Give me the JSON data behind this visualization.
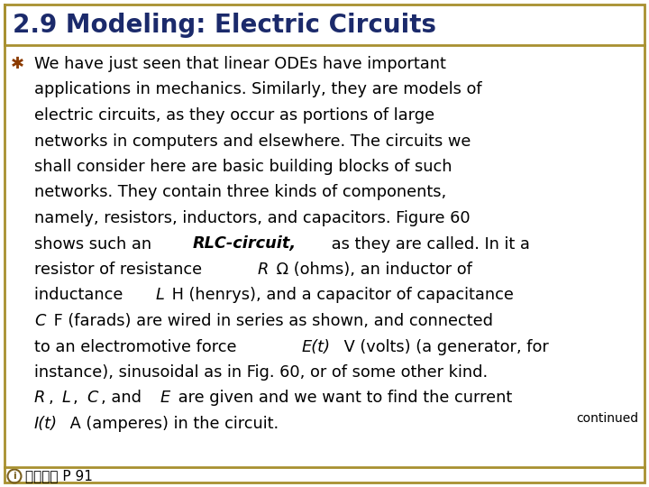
{
  "title": "2.9 Modeling: Electric Circuits",
  "title_color": "#1B2A6B",
  "title_fontsize": 20,
  "background_color": "#FFFFFF",
  "border_color": "#A89030",
  "bullet_color": "#8B3A00",
  "bullet_char": "✱",
  "continued_text": "continued",
  "footer_text": "歐亞書局 P 91",
  "text_color": "#000000",
  "body_fontsize": 12.8,
  "footer_fontsize": 11,
  "lines_data": [
    [
      {
        "text": "We have just seen that linear ODEs have important",
        "style": "normal"
      }
    ],
    [
      {
        "text": "applications in mechanics. Similarly, they are models of",
        "style": "normal"
      }
    ],
    [
      {
        "text": "electric circuits, as they occur as portions of large",
        "style": "normal"
      }
    ],
    [
      {
        "text": "networks in computers and elsewhere. The circuits we",
        "style": "normal"
      }
    ],
    [
      {
        "text": "shall consider here are basic building blocks of such",
        "style": "normal"
      }
    ],
    [
      {
        "text": "networks. They contain three kinds of components,",
        "style": "normal"
      }
    ],
    [
      {
        "text": "namely, resistors, inductors, and capacitors. Figure 60",
        "style": "normal"
      }
    ],
    [
      {
        "text": "shows such an ",
        "style": "normal"
      },
      {
        "text": "RLC-circuit,",
        "style": "bold_italic"
      },
      {
        "text": " as they are called. In it a",
        "style": "normal"
      }
    ],
    [
      {
        "text": "resistor of resistance ",
        "style": "normal"
      },
      {
        "text": "R",
        "style": "italic"
      },
      {
        "text": " Ω (ohms), an inductor of",
        "style": "normal"
      }
    ],
    [
      {
        "text": "inductance ",
        "style": "normal"
      },
      {
        "text": "L",
        "style": "italic"
      },
      {
        "text": " H (henrys), and a capacitor of capacitance",
        "style": "normal"
      }
    ],
    [
      {
        "text": "C",
        "style": "italic"
      },
      {
        "text": " F (farads) are wired in series as shown, and connected",
        "style": "normal"
      }
    ],
    [
      {
        "text": "to an electromotive force ",
        "style": "normal"
      },
      {
        "text": "E(t)",
        "style": "italic"
      },
      {
        "text": " V (volts) (a generator, for",
        "style": "normal"
      }
    ],
    [
      {
        "text": "instance), sinusoidal as in Fig. 60, or of some other kind.",
        "style": "normal"
      }
    ],
    [
      {
        "text": "R",
        "style": "italic"
      },
      {
        "text": ", ",
        "style": "normal"
      },
      {
        "text": "L",
        "style": "italic"
      },
      {
        "text": ", ",
        "style": "normal"
      },
      {
        "text": "C",
        "style": "italic"
      },
      {
        "text": ", and ",
        "style": "normal"
      },
      {
        "text": "E",
        "style": "italic"
      },
      {
        "text": " are given and we want to find the current",
        "style": "normal"
      }
    ],
    [
      {
        "text": "I(t)",
        "style": "italic"
      },
      {
        "text": " A (amperes) in the circuit.",
        "style": "normal"
      }
    ]
  ]
}
